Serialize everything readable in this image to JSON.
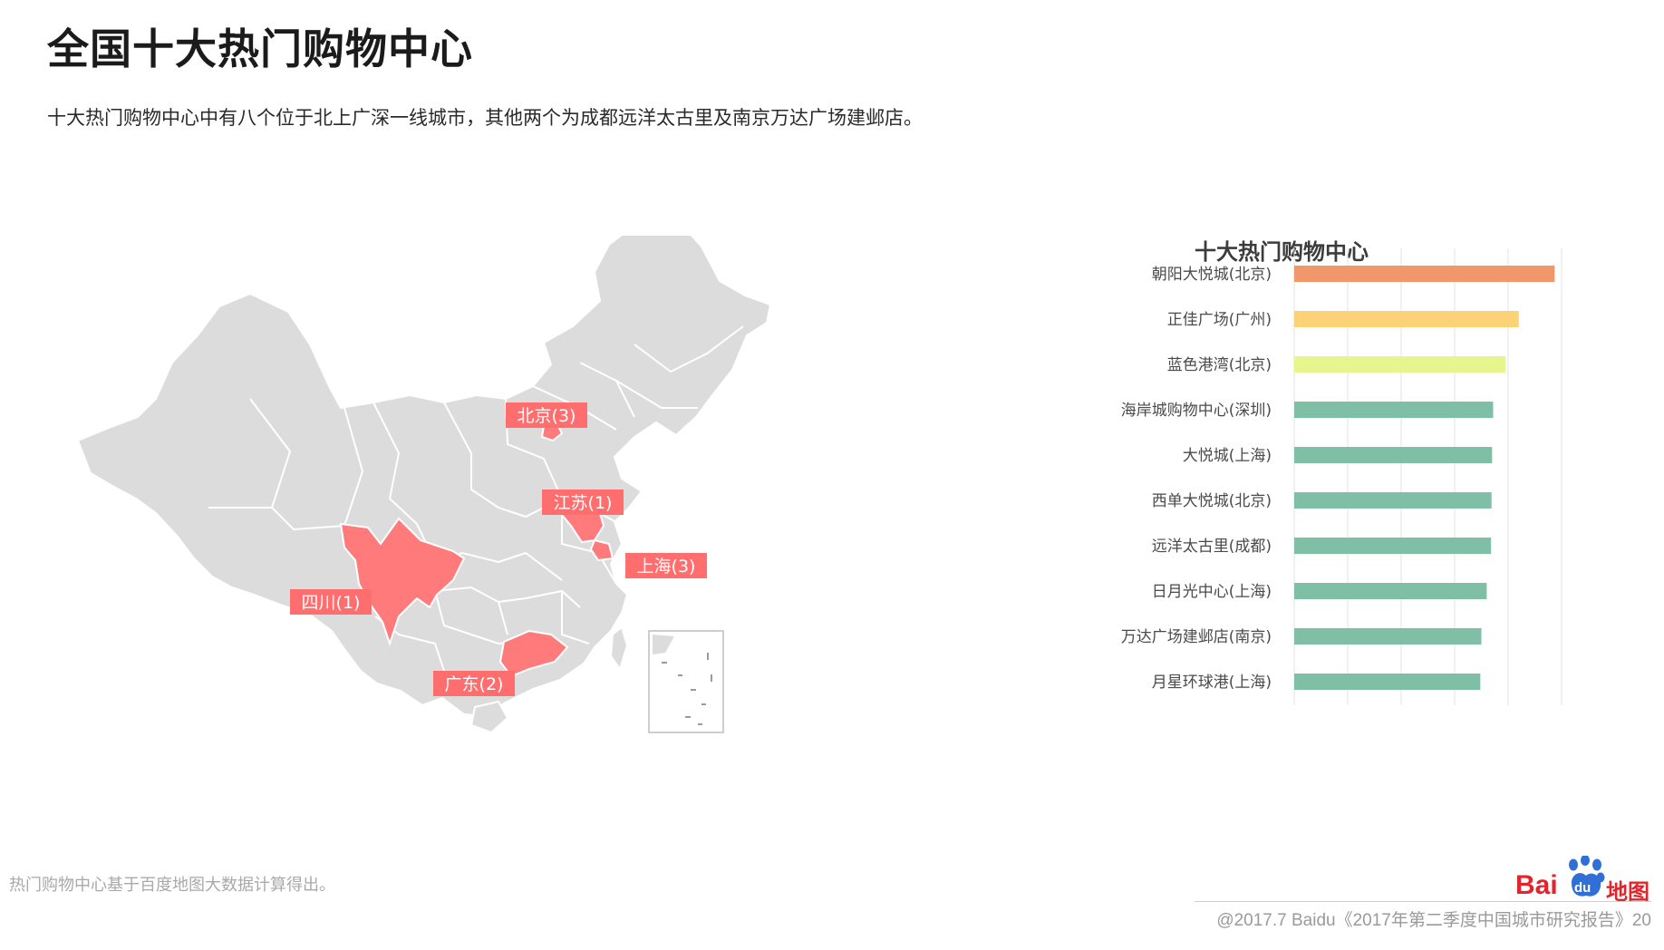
{
  "page": {
    "title": "全国十大热门购物中心",
    "subtitle": "十大热门购物中心中有八个位于北上广深一线城市，其他两个为成都远洋太古里及南京万达广场建邺店。",
    "footnote": "热门购物中心基于百度地图大数据计算得出。",
    "footer": "@2017.7 Baidu《2017年第二季度中国城市研究报告》20",
    "logo": {
      "brand": "Bai",
      "sub": "du",
      "suffix": "地图",
      "color": "#e3242b"
    }
  },
  "map": {
    "base_color": "#dcdcdc",
    "border_color": "#ffffff",
    "highlight_color": "#ff7b7b",
    "label_color": "#ff6e6e",
    "labels": [
      "北京(3)",
      "江苏(1)",
      "上海(3)",
      "四川(1)",
      "广东(2)"
    ]
  },
  "chart_data": {
    "type": "bar",
    "orientation": "horizontal",
    "title": "十大热门购物中心",
    "categories": [
      "朝阳大悦城(北京)",
      "正佳广场(广州)",
      "蓝色港湾(北京)",
      "海岸城购物中心(深圳)",
      "大悦城(上海)",
      "西单大悦城(北京)",
      "远洋太古里(成都)",
      "日月光中心(上海)",
      "万达广场建邺店(南京)",
      "月星环球港(上海)"
    ],
    "values": [
      4.87,
      4.2,
      3.95,
      3.72,
      3.7,
      3.69,
      3.68,
      3.6,
      3.5,
      3.48
    ],
    "colors": [
      "#f0976b",
      "#fcd277",
      "#e6f58c",
      "#7fbfa5",
      "#7fbfa5",
      "#7fbfa5",
      "#7fbfa5",
      "#7fbfa5",
      "#7fbfa5",
      "#7fbfa5"
    ],
    "xlim": [
      0,
      6
    ],
    "grid": true,
    "legend": "none"
  }
}
